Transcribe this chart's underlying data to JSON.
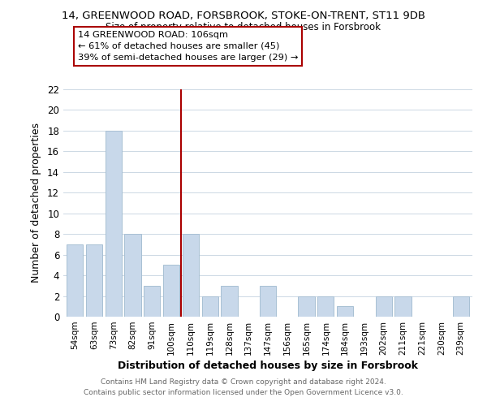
{
  "title": "14, GREENWOOD ROAD, FORSBROOK, STOKE-ON-TRENT, ST11 9DB",
  "subtitle": "Size of property relative to detached houses in Forsbrook",
  "xlabel": "Distribution of detached houses by size in Forsbrook",
  "ylabel": "Number of detached properties",
  "bar_color": "#c8d8ea",
  "bar_edge_color": "#a8c0d4",
  "categories": [
    "54sqm",
    "63sqm",
    "73sqm",
    "82sqm",
    "91sqm",
    "100sqm",
    "110sqm",
    "119sqm",
    "128sqm",
    "137sqm",
    "147sqm",
    "156sqm",
    "165sqm",
    "174sqm",
    "184sqm",
    "193sqm",
    "202sqm",
    "211sqm",
    "221sqm",
    "230sqm",
    "239sqm"
  ],
  "values": [
    7,
    7,
    18,
    8,
    3,
    5,
    8,
    2,
    3,
    0,
    3,
    0,
    2,
    2,
    1,
    0,
    2,
    2,
    0,
    0,
    2
  ],
  "ylim": [
    0,
    22
  ],
  "yticks": [
    0,
    2,
    4,
    6,
    8,
    10,
    12,
    14,
    16,
    18,
    20,
    22
  ],
  "ref_line_x": 5.5,
  "ref_line_color": "#aa0000",
  "annotation_box_title": "14 GREENWOOD ROAD: 106sqm",
  "annotation_line1": "← 61% of detached houses are smaller (45)",
  "annotation_line2": "39% of semi-detached houses are larger (29) →",
  "annotation_box_color": "#ffffff",
  "annotation_box_edge_color": "#aa0000",
  "footer_line1": "Contains HM Land Registry data © Crown copyright and database right 2024.",
  "footer_line2": "Contains public sector information licensed under the Open Government Licence v3.0.",
  "background_color": "#ffffff",
  "grid_color": "#ccd8e4"
}
